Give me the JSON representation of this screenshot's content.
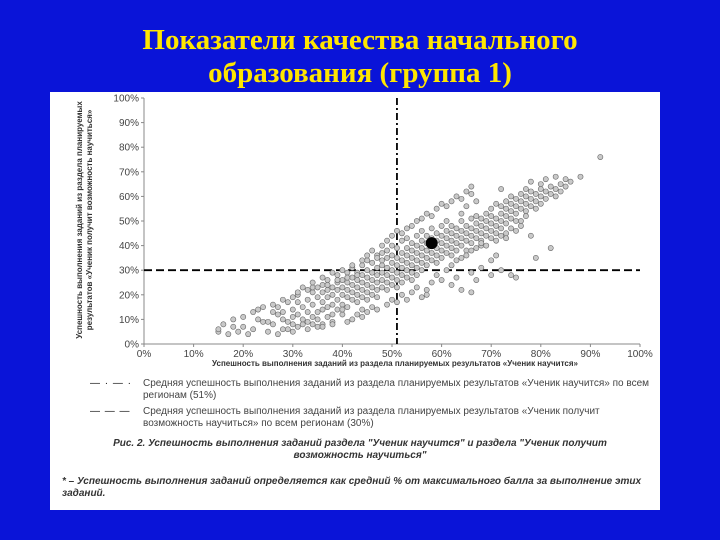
{
  "slide": {
    "title_line1": "Показатели качества начального",
    "title_line2": "образования (группа 1)",
    "background": "#0a14d8",
    "title_color": "#ffe600"
  },
  "figure": {
    "legend": [
      {
        "key": "— · — ·",
        "text": "Средняя успешность выполнения заданий из раздела планируемых результатов «Ученик научится» по всем регионам (51%)"
      },
      {
        "key": "— — —",
        "text": "Средняя успешность выполнения заданий из раздела планируемых результатов «Ученик получит возможность научиться» по всем регионам (30%)"
      }
    ],
    "caption": "Рис. 2. Успешность выполнения заданий раздела \"Ученик научится\" и раздела \"Ученик получит возможность научиться\"",
    "footnote": "* – Успешность выполнения заданий определяется как средний % от максимального балла за выполнение этих заданий."
  },
  "chart_data": {
    "type": "scatter",
    "xlabel": "Успешность выполнения заданий из раздела планируемых результатов «Ученик научится»",
    "ylabel_line1": "Успешность выполнения заданий из раздела планируемых",
    "ylabel_line2": "результатов «Ученик получит возможность научиться»",
    "xlim": [
      0,
      100
    ],
    "ylim": [
      0,
      100
    ],
    "x_ticks": [
      "0%",
      "10%",
      "20%",
      "30%",
      "40%",
      "50%",
      "60%",
      "70%",
      "80%",
      "90%",
      "100%"
    ],
    "y_ticks": [
      "0%",
      "10%",
      "20%",
      "30%",
      "40%",
      "50%",
      "60%",
      "70%",
      "80%",
      "90%",
      "100%"
    ],
    "grid": false,
    "reference_lines": [
      {
        "orientation": "vertical",
        "value": 51,
        "style": "dash-dot"
      },
      {
        "orientation": "horizontal",
        "value": 30,
        "style": "dashed"
      }
    ],
    "highlight_point": {
      "x": 58,
      "y": 41
    },
    "points": [
      [
        15,
        5
      ],
      [
        15,
        6
      ],
      [
        16,
        8
      ],
      [
        20,
        7
      ],
      [
        23,
        10
      ],
      [
        23,
        14
      ],
      [
        25,
        5
      ],
      [
        25,
        9
      ],
      [
        26,
        13
      ],
      [
        27,
        12
      ],
      [
        27,
        15
      ],
      [
        28,
        6
      ],
      [
        28,
        10
      ],
      [
        28,
        13
      ],
      [
        29,
        17
      ],
      [
        29,
        9
      ],
      [
        30,
        11
      ],
      [
        30,
        14
      ],
      [
        30,
        8
      ],
      [
        31,
        12
      ],
      [
        31,
        17
      ],
      [
        31,
        20
      ],
      [
        32,
        8
      ],
      [
        32,
        15
      ],
      [
        32,
        10
      ],
      [
        33,
        13
      ],
      [
        33,
        18
      ],
      [
        33,
        6
      ],
      [
        34,
        16
      ],
      [
        34,
        11
      ],
      [
        34,
        21
      ],
      [
        34,
        23
      ],
      [
        35,
        13
      ],
      [
        35,
        19
      ],
      [
        35,
        10
      ],
      [
        35,
        7
      ],
      [
        36,
        17
      ],
      [
        36,
        21
      ],
      [
        36,
        14
      ],
      [
        36,
        24
      ],
      [
        36,
        8
      ],
      [
        37,
        11
      ],
      [
        37,
        19
      ],
      [
        37,
        15
      ],
      [
        37,
        22
      ],
      [
        37,
        26
      ],
      [
        38,
        16
      ],
      [
        38,
        20
      ],
      [
        38,
        12
      ],
      [
        38,
        23
      ],
      [
        38,
        9
      ],
      [
        39,
        18
      ],
      [
        39,
        22
      ],
      [
        39,
        25
      ],
      [
        39,
        14
      ],
      [
        39,
        28
      ],
      [
        40,
        20
      ],
      [
        40,
        16
      ],
      [
        40,
        23
      ],
      [
        40,
        26
      ],
      [
        40,
        12
      ],
      [
        41,
        19
      ],
      [
        41,
        22
      ],
      [
        41,
        25
      ],
      [
        41,
        29
      ],
      [
        41,
        15
      ],
      [
        42,
        21
      ],
      [
        42,
        18
      ],
      [
        42,
        24
      ],
      [
        42,
        27
      ],
      [
        42,
        31
      ],
      [
        43,
        20
      ],
      [
        43,
        23
      ],
      [
        43,
        26
      ],
      [
        43,
        17
      ],
      [
        43,
        29
      ],
      [
        44,
        22
      ],
      [
        44,
        25
      ],
      [
        44,
        28
      ],
      [
        44,
        19
      ],
      [
        44,
        32
      ],
      [
        44,
        14
      ],
      [
        45,
        24
      ],
      [
        45,
        27
      ],
      [
        45,
        21
      ],
      [
        45,
        30
      ],
      [
        45,
        34
      ],
      [
        45,
        18
      ],
      [
        46,
        23
      ],
      [
        46,
        26
      ],
      [
        46,
        29
      ],
      [
        46,
        20
      ],
      [
        46,
        33
      ],
      [
        47,
        25
      ],
      [
        47,
        28
      ],
      [
        47,
        22
      ],
      [
        47,
        31
      ],
      [
        47,
        36
      ],
      [
        47,
        19
      ],
      [
        48,
        26
      ],
      [
        48,
        29
      ],
      [
        48,
        23
      ],
      [
        48,
        32
      ],
      [
        48,
        37
      ],
      [
        48,
        34
      ],
      [
        49,
        25
      ],
      [
        49,
        28
      ],
      [
        49,
        31
      ],
      [
        49,
        22
      ],
      [
        49,
        35
      ],
      [
        49,
        38
      ],
      [
        50,
        27
      ],
      [
        50,
        30
      ],
      [
        50,
        24
      ],
      [
        50,
        33
      ],
      [
        50,
        36
      ],
      [
        50,
        40
      ],
      [
        51,
        26
      ],
      [
        51,
        29
      ],
      [
        51,
        32
      ],
      [
        51,
        35
      ],
      [
        51,
        23
      ],
      [
        51,
        39
      ],
      [
        52,
        28
      ],
      [
        52,
        31
      ],
      [
        52,
        34
      ],
      [
        52,
        37
      ],
      [
        52,
        25
      ],
      [
        52,
        42
      ],
      [
        53,
        30
      ],
      [
        53,
        33
      ],
      [
        53,
        36
      ],
      [
        53,
        39
      ],
      [
        53,
        27
      ],
      [
        53,
        43
      ],
      [
        54,
        29
      ],
      [
        54,
        32
      ],
      [
        54,
        35
      ],
      [
        54,
        38
      ],
      [
        54,
        41
      ],
      [
        54,
        26
      ],
      [
        55,
        31
      ],
      [
        55,
        34
      ],
      [
        55,
        37
      ],
      [
        55,
        40
      ],
      [
        55,
        44
      ],
      [
        55,
        28
      ],
      [
        56,
        33
      ],
      [
        56,
        36
      ],
      [
        56,
        39
      ],
      [
        56,
        42
      ],
      [
        56,
        30
      ],
      [
        56,
        46
      ],
      [
        57,
        35
      ],
      [
        57,
        38
      ],
      [
        57,
        41
      ],
      [
        57,
        44
      ],
      [
        57,
        32
      ],
      [
        58,
        37
      ],
      [
        58,
        40
      ],
      [
        58,
        43
      ],
      [
        58,
        34
      ],
      [
        58,
        47
      ],
      [
        59,
        36
      ],
      [
        59,
        39
      ],
      [
        59,
        42
      ],
      [
        59,
        45
      ],
      [
        59,
        33
      ],
      [
        60,
        38
      ],
      [
        60,
        41
      ],
      [
        60,
        44
      ],
      [
        60,
        35
      ],
      [
        60,
        48
      ],
      [
        61,
        40
      ],
      [
        61,
        43
      ],
      [
        61,
        37
      ],
      [
        61,
        46
      ],
      [
        61,
        50
      ],
      [
        62,
        39
      ],
      [
        62,
        42
      ],
      [
        62,
        45
      ],
      [
        62,
        36
      ],
      [
        62,
        48
      ],
      [
        63,
        41
      ],
      [
        63,
        44
      ],
      [
        63,
        38
      ],
      [
        63,
        47
      ],
      [
        64,
        43
      ],
      [
        64,
        40
      ],
      [
        64,
        46
      ],
      [
        64,
        50
      ],
      [
        64,
        53
      ],
      [
        65,
        42
      ],
      [
        65,
        45
      ],
      [
        65,
        48
      ],
      [
        65,
        38
      ],
      [
        65,
        56
      ],
      [
        66,
        44
      ],
      [
        66,
        47
      ],
      [
        66,
        41
      ],
      [
        66,
        51
      ],
      [
        66,
        61
      ],
      [
        67,
        46
      ],
      [
        67,
        43
      ],
      [
        67,
        49
      ],
      [
        67,
        52
      ],
      [
        67,
        58
      ],
      [
        68,
        45
      ],
      [
        68,
        48
      ],
      [
        68,
        42
      ],
      [
        68,
        51
      ],
      [
        68,
        40
      ],
      [
        69,
        47
      ],
      [
        69,
        50
      ],
      [
        69,
        53
      ],
      [
        69,
        44
      ],
      [
        70,
        49
      ],
      [
        70,
        46
      ],
      [
        70,
        52
      ],
      [
        70,
        55
      ],
      [
        70,
        34
      ],
      [
        71,
        48
      ],
      [
        71,
        51
      ],
      [
        71,
        45
      ],
      [
        71,
        57
      ],
      [
        71,
        36
      ],
      [
        72,
        50
      ],
      [
        72,
        53
      ],
      [
        72,
        47
      ],
      [
        72,
        56
      ],
      [
        72,
        63
      ],
      [
        73,
        52
      ],
      [
        73,
        55
      ],
      [
        73,
        49
      ],
      [
        73,
        58
      ],
      [
        73,
        45
      ],
      [
        74,
        54
      ],
      [
        74,
        51
      ],
      [
        74,
        57
      ],
      [
        74,
        60
      ],
      [
        75,
        53
      ],
      [
        75,
        56
      ],
      [
        75,
        50
      ],
      [
        75,
        59
      ],
      [
        75,
        27
      ],
      [
        76,
        55
      ],
      [
        76,
        58
      ],
      [
        76,
        61
      ],
      [
        76,
        48
      ],
      [
        77,
        57
      ],
      [
        77,
        60
      ],
      [
        77,
        54
      ],
      [
        77,
        63
      ],
      [
        78,
        56
      ],
      [
        78,
        59
      ],
      [
        78,
        62
      ],
      [
        78,
        44
      ],
      [
        78,
        66
      ],
      [
        79,
        58
      ],
      [
        79,
        61
      ],
      [
        79,
        55
      ],
      [
        79,
        35
      ],
      [
        80,
        60
      ],
      [
        80,
        63
      ],
      [
        80,
        65
      ],
      [
        80,
        57
      ],
      [
        81,
        62
      ],
      [
        81,
        59
      ],
      [
        81,
        67
      ],
      [
        82,
        61
      ],
      [
        82,
        64
      ],
      [
        82,
        39
      ],
      [
        83,
        63
      ],
      [
        83,
        60
      ],
      [
        83,
        68
      ],
      [
        84,
        65
      ],
      [
        84,
        62
      ],
      [
        85,
        67
      ],
      [
        85,
        64
      ],
      [
        86,
        66
      ],
      [
        88,
        68
      ],
      [
        92,
        76
      ],
      [
        62,
        24
      ],
      [
        63,
        27
      ],
      [
        64,
        22
      ],
      [
        67,
        26
      ],
      [
        66,
        21
      ],
      [
        70,
        28
      ],
      [
        72,
        30
      ],
      [
        74,
        28
      ],
      [
        66,
        29
      ],
      [
        68,
        31
      ],
      [
        60,
        26
      ],
      [
        58,
        25
      ],
      [
        57,
        22
      ],
      [
        59,
        28
      ],
      [
        61,
        30
      ],
      [
        62,
        32
      ],
      [
        63,
        34
      ],
      [
        64,
        35
      ],
      [
        65,
        36
      ],
      [
        66,
        38
      ],
      [
        67,
        39
      ],
      [
        68,
        41
      ],
      [
        69,
        40
      ],
      [
        70,
        43
      ],
      [
        71,
        42
      ],
      [
        72,
        44
      ],
      [
        73,
        43
      ],
      [
        74,
        47
      ],
      [
        75,
        46
      ],
      [
        76,
        50
      ],
      [
        77,
        52
      ],
      [
        52,
        20
      ],
      [
        53,
        18
      ],
      [
        54,
        21
      ],
      [
        55,
        23
      ],
      [
        56,
        19
      ],
      [
        57,
        20
      ],
      [
        50,
        18
      ],
      [
        51,
        17
      ],
      [
        49,
        16
      ],
      [
        47,
        14
      ],
      [
        46,
        15
      ],
      [
        45,
        13
      ],
      [
        44,
        11
      ],
      [
        43,
        12
      ],
      [
        42,
        10
      ],
      [
        41,
        9
      ],
      [
        40,
        14
      ],
      [
        38,
        8
      ],
      [
        36,
        7
      ],
      [
        34,
        8
      ],
      [
        33,
        9
      ],
      [
        31,
        7
      ],
      [
        30,
        5
      ],
      [
        29,
        6
      ],
      [
        27,
        4
      ],
      [
        26,
        8
      ],
      [
        24,
        9
      ],
      [
        22,
        6
      ],
      [
        21,
        4
      ],
      [
        19,
        5
      ],
      [
        18,
        7
      ],
      [
        17,
        4
      ],
      [
        40,
        30
      ],
      [
        42,
        32
      ],
      [
        44,
        34
      ],
      [
        45,
        36
      ],
      [
        46,
        38
      ],
      [
        48,
        40
      ],
      [
        49,
        42
      ],
      [
        47,
        35
      ],
      [
        43,
        28
      ],
      [
        41,
        27
      ],
      [
        39,
        26
      ],
      [
        37,
        24
      ],
      [
        35,
        23
      ],
      [
        33,
        22
      ],
      [
        31,
        21
      ],
      [
        38,
        29
      ],
      [
        36,
        27
      ],
      [
        34,
        25
      ],
      [
        32,
        23
      ],
      [
        30,
        19
      ],
      [
        28,
        18
      ],
      [
        26,
        16
      ],
      [
        24,
        15
      ],
      [
        22,
        13
      ],
      [
        20,
        11
      ],
      [
        18,
        10
      ],
      [
        50,
        44
      ],
      [
        51,
        46
      ],
      [
        52,
        45
      ],
      [
        53,
        47
      ],
      [
        54,
        48
      ],
      [
        55,
        50
      ],
      [
        56,
        51
      ],
      [
        57,
        53
      ],
      [
        58,
        52
      ],
      [
        59,
        55
      ],
      [
        60,
        57
      ],
      [
        61,
        56
      ],
      [
        62,
        58
      ],
      [
        63,
        60
      ],
      [
        64,
        59
      ],
      [
        65,
        62
      ],
      [
        66,
        64
      ]
    ]
  }
}
